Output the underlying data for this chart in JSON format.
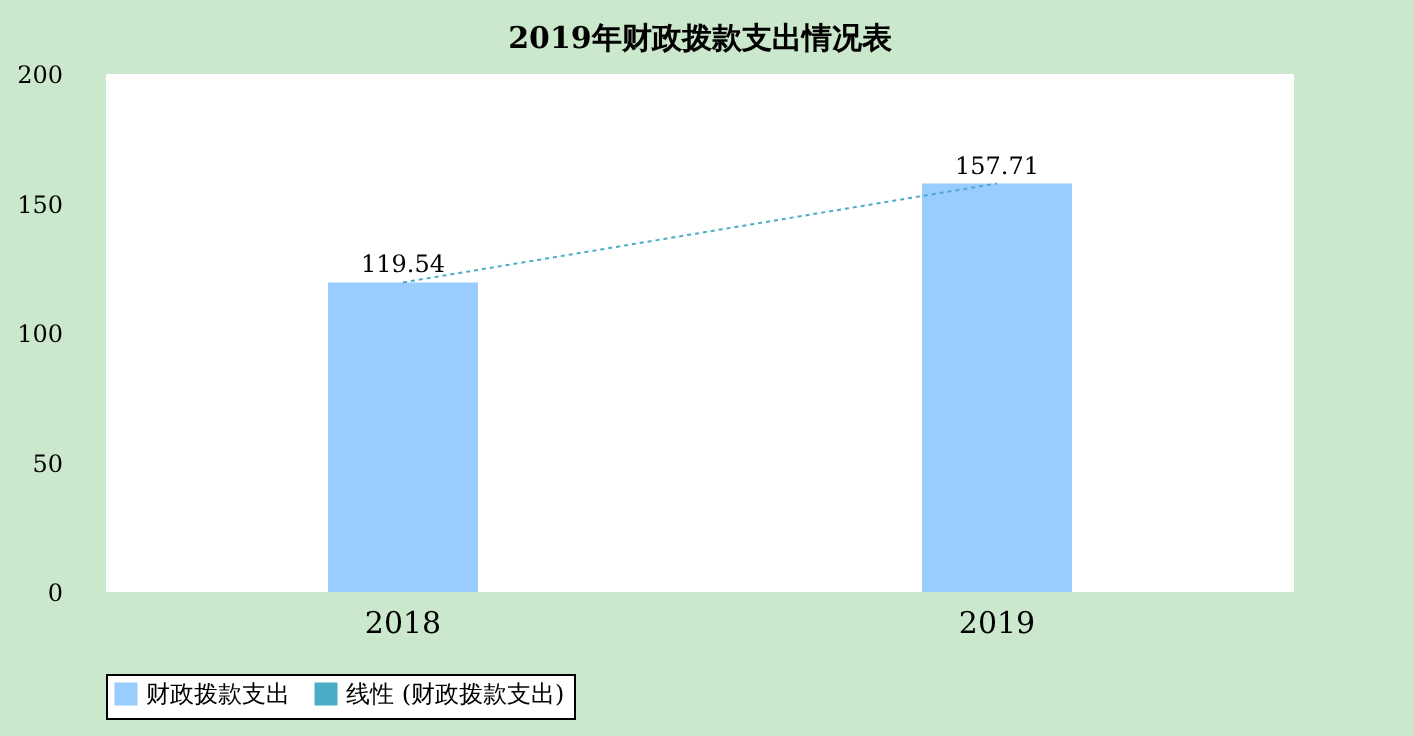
{
  "chart_data": {
    "type": "bar",
    "title": "2019年财政拨款支出情况表",
    "categories": [
      "2018",
      "2019"
    ],
    "series": [
      {
        "name": "财政拨款支出",
        "color": "#99ccff",
        "values": [
          119.54,
          157.71
        ],
        "value_labels": [
          "119.54",
          "157.71"
        ]
      },
      {
        "name": "线性 (财政拨款支出)",
        "type": "line",
        "line_style": "dotted",
        "color": "#4bacc6",
        "values": [
          119.54,
          157.71
        ]
      }
    ],
    "ylim": [
      0,
      200
    ],
    "yticks": [
      0,
      50,
      100,
      150,
      200
    ],
    "grid": false,
    "legend": "bottom"
  }
}
